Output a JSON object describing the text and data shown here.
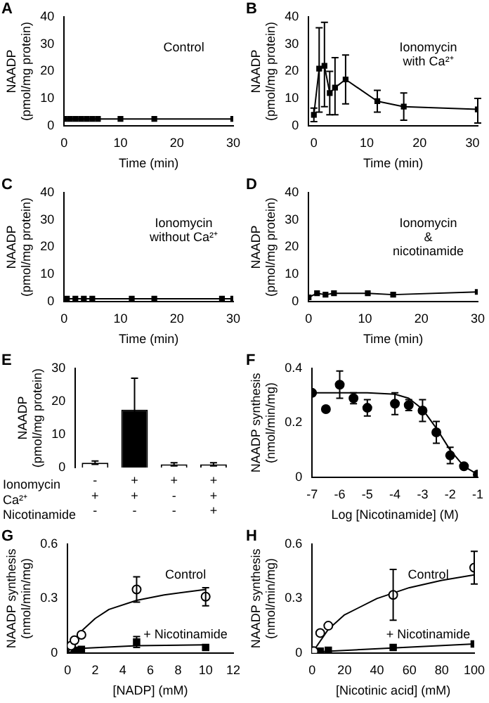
{
  "chart_data": [
    {
      "title": "A",
      "type": "line",
      "marker": "square",
      "xlabel": "Time (min)",
      "ylabel": "NAADP\n(pmol/mg protein)",
      "xlim": [
        0,
        30
      ],
      "xticks": [
        0,
        10,
        20,
        30
      ],
      "ylim": [
        0,
        40
      ],
      "yticks": [
        0,
        10,
        20,
        30,
        40
      ],
      "annotations": [
        "Control"
      ],
      "series": [
        {
          "color": "#000000",
          "x": [
            0,
            1,
            2,
            3,
            4,
            5,
            6,
            10,
            16,
            30
          ],
          "values": [
            2.5,
            2.5,
            2.5,
            2.5,
            2.5,
            2.5,
            2.5,
            2.5,
            2.5,
            2.5
          ]
        }
      ]
    },
    {
      "title": "B",
      "type": "line",
      "marker": "square",
      "xlabel": "Time (min)",
      "ylabel": "NAADP\n(pmol/mg protein)",
      "xlim": [
        -1,
        31
      ],
      "xticks": [
        0,
        10,
        20,
        30
      ],
      "ylim": [
        0,
        40
      ],
      "yticks": [
        0,
        10,
        20,
        30,
        40
      ],
      "annotations": [
        "Ionomycin\nwith Ca²⁺"
      ],
      "series": [
        {
          "color": "#000000",
          "x": [
            0,
            1,
            2,
            3,
            4,
            6,
            12,
            17,
            31
          ],
          "values": [
            4,
            21,
            22,
            12,
            14,
            17,
            9,
            7,
            6
          ],
          "errors": [
            [
              1.5,
              6.5
            ],
            [
              5,
              36
            ],
            [
              7,
              38
            ],
            [
              4,
              20
            ],
            [
              4,
              25
            ],
            [
              8,
              26
            ],
            [
              5,
              13
            ],
            [
              2,
              12
            ],
            [
              1,
              10
            ]
          ]
        }
      ]
    },
    {
      "title": "C",
      "type": "line",
      "marker": "square",
      "xlabel": "Time (min)",
      "ylabel": "NAADP\n(pmol/mg protein)",
      "xlim": [
        0,
        30
      ],
      "xticks": [
        0,
        10,
        20,
        30
      ],
      "ylim": [
        0,
        40
      ],
      "yticks": [
        0,
        10,
        20,
        30,
        40
      ],
      "annotations": [
        "Ionomycin\nwithout Ca²⁺"
      ],
      "series": [
        {
          "color": "#000000",
          "x": [
            0.5,
            2,
            3.5,
            5,
            12,
            16,
            28,
            30
          ],
          "values": [
            1,
            1,
            1,
            1,
            1,
            1,
            1,
            1
          ]
        }
      ]
    },
    {
      "title": "D",
      "type": "line",
      "marker": "square",
      "xlabel": "Time (min)",
      "ylabel": "NAADP\n(pmol/mg protein)",
      "xlim": [
        0,
        30
      ],
      "xticks": [
        0,
        10,
        20,
        30
      ],
      "ylim": [
        0,
        40
      ],
      "yticks": [
        0,
        10,
        20,
        30,
        40
      ],
      "annotations": [
        "Ionomycin\n&\nnicotinamide"
      ],
      "series": [
        {
          "color": "#000000",
          "x": [
            0,
            1.5,
            3,
            4.5,
            10.5,
            15,
            30
          ],
          "values": [
            1.5,
            3,
            2.5,
            3,
            3,
            2.5,
            3.5
          ]
        }
      ]
    },
    {
      "title": "E",
      "type": "bar",
      "xlabel": "Ionomycin\nCa²⁺\nNicotinamide",
      "ylabel": "NAADP\n(pmol/mg protein)",
      "ylim": [
        0,
        30
      ],
      "yticks": [
        0,
        10,
        20,
        30
      ],
      "categories": [
        "-\n+\n-",
        "+\n+\n-",
        "+\n-\n-",
        "+\n+\n+"
      ],
      "values": [
        1.5,
        17.5,
        1,
        1
      ],
      "colors": [
        "#ffffff",
        "#000000",
        "#ffffff",
        "#ffffff"
      ],
      "errors": [
        0.5,
        9.5,
        0.5,
        0.5
      ]
    },
    {
      "title": "F",
      "type": "scatter",
      "marker": "circle",
      "xlabel": "Log [Nicotinamide] (M)",
      "ylabel": "NAADP synthesis\n(nmol/min/mg)",
      "xlim": [
        -7,
        -1
      ],
      "xticks": [
        -7,
        -6,
        -5,
        -4,
        -3,
        -2,
        -1
      ],
      "ylim": [
        0,
        0.4
      ],
      "yticks": [
        0,
        0.2,
        0.4
      ],
      "series": [
        {
          "color": "#000000",
          "x": [
            -7,
            -6.5,
            -6,
            -5.5,
            -5,
            -4,
            -3.5,
            -3,
            -2.5,
            -2,
            -1.5,
            -1
          ],
          "values": [
            0.31,
            0.25,
            0.34,
            0.29,
            0.255,
            0.27,
            0.265,
            0.245,
            0.165,
            0.08,
            0.04,
            0.01
          ],
          "errors": [
            null,
            null,
            0.05,
            0.02,
            0.03,
            0.04,
            0.02,
            0.04,
            0.04,
            0.03,
            null,
            null
          ]
        },
        {
          "type": "line",
          "marker": "none",
          "color": "#000000",
          "x": [
            -7,
            -5,
            -4,
            -3.5,
            -3,
            -2.5,
            -2,
            -1.5,
            -1
          ],
          "values": [
            0.31,
            0.31,
            0.305,
            0.29,
            0.25,
            0.18,
            0.1,
            0.04,
            0.01
          ]
        }
      ]
    },
    {
      "title": "G",
      "type": "scatter",
      "xlabel": "[NADP] (mM)",
      "ylabel": "NAADP synthesis\n(nmol/min/mg)",
      "xlim": [
        0,
        12
      ],
      "xticks": [
        0,
        2,
        4,
        6,
        8,
        10,
        12
      ],
      "ylim": [
        0,
        0.6
      ],
      "yticks": [
        0,
        0.3,
        0.6
      ],
      "annotations": [
        "Control",
        "+ Nicotinamide"
      ],
      "series": [
        {
          "marker": "circle",
          "color": "#ffffff",
          "x": [
            0.25,
            0.5,
            1,
            5,
            10
          ],
          "values": [
            0.04,
            0.07,
            0.1,
            0.35,
            0.31
          ],
          "errors": [
            null,
            null,
            null,
            0.07,
            0.05
          ]
        },
        {
          "type": "line",
          "marker": "none",
          "color": "#000000",
          "x": [
            0,
            0.5,
            1,
            2,
            3,
            5,
            7,
            10
          ],
          "values": [
            0,
            0.07,
            0.12,
            0.19,
            0.24,
            0.29,
            0.32,
            0.35
          ]
        },
        {
          "marker": "square",
          "color": "#000000",
          "x": [
            0.5,
            1,
            5,
            10
          ],
          "values": [
            0.015,
            0.02,
            0.06,
            0.03
          ],
          "errors": [
            null,
            null,
            0.03,
            null
          ]
        },
        {
          "type": "line",
          "marker": "none",
          "color": "#000000",
          "x": [
            0,
            1,
            5,
            10
          ],
          "values": [
            0,
            0.025,
            0.04,
            0.045
          ]
        }
      ]
    },
    {
      "title": "H",
      "type": "scatter",
      "xlabel": "[Nicotinic acid] (mM)",
      "ylabel": "NAADP synthesis\n(nmol/min/mg)",
      "xlim": [
        0,
        100
      ],
      "xticks": [
        0,
        20,
        40,
        60,
        80,
        100
      ],
      "ylim": [
        0,
        0.6
      ],
      "yticks": [
        0,
        0.3,
        0.6
      ],
      "annotations": [
        "Control",
        "+ Nicotinamide"
      ],
      "series": [
        {
          "marker": "circle",
          "color": "#ffffff",
          "x": [
            1,
            5,
            10,
            50,
            100
          ],
          "values": [
            0.01,
            0.11,
            0.15,
            0.32,
            0.47
          ],
          "errors": [
            null,
            null,
            null,
            0.14,
            0.09
          ]
        },
        {
          "type": "line",
          "marker": "none",
          "color": "#000000",
          "x": [
            0,
            10,
            20,
            40,
            60,
            80,
            100
          ],
          "values": [
            0,
            0.13,
            0.21,
            0.3,
            0.36,
            0.4,
            0.43
          ]
        },
        {
          "marker": "square",
          "color": "#000000",
          "x": [
            5,
            10,
            50,
            100
          ],
          "values": [
            0.01,
            0.015,
            0.03,
            0.05
          ]
        },
        {
          "type": "line",
          "marker": "none",
          "color": "#000000",
          "x": [
            0,
            100
          ],
          "values": [
            0.005,
            0.05
          ]
        }
      ]
    }
  ]
}
